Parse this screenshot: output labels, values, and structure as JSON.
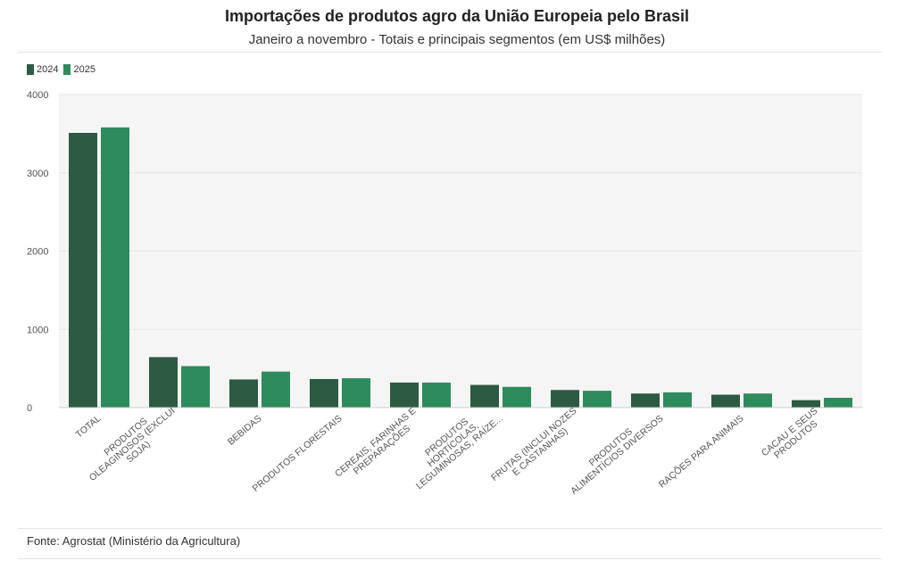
{
  "header": {
    "title": "Importações de produtos agro da União Europeia pelo Brasil",
    "subtitle": "Janeiro a novembro - Totais e principais segmentos (em US$ milhões)"
  },
  "legend": [
    {
      "label": "2024",
      "color": "#2d5a43"
    },
    {
      "label": "2025",
      "color": "#2e8b5e"
    }
  ],
  "footer": {
    "source": "Fonte: Agrostat (Ministério da Agricultura)"
  },
  "colors": {
    "plot_background": "#f5f5f5",
    "gridline": "#e6e6e6",
    "series_2024": "#2d5a43",
    "series_2025": "#2e8b5e"
  },
  "chart_data": {
    "type": "bar",
    "categories": [
      [
        "TOTAL"
      ],
      [
        "PRODUTOS",
        "OLEAGINOSOS (EXCLUI",
        "SOJA)"
      ],
      [
        "BEBIDAS"
      ],
      [
        "PRODUTOS FLORESTAIS"
      ],
      [
        "CEREAIS, FARINHAS E",
        "PREPARAÇÕES"
      ],
      [
        "PRODUTOS",
        "HORTÍCOLAS,",
        "LEGUMINOSAS, RAÍZE..."
      ],
      [
        "FRUTAS (INCLUI NOZES",
        "E CASTANHAS)"
      ],
      [
        "PRODUTOS",
        "ALIMENTÍCIOS DIVERSOS"
      ],
      [
        "RAÇÕES PARA ANIMAIS"
      ],
      [
        "CACAU E SEUS",
        "PRODUTOS"
      ]
    ],
    "series": [
      {
        "name": "2024",
        "values": [
          3510,
          645,
          360,
          365,
          320,
          290,
          225,
          180,
          165,
          95
        ]
      },
      {
        "name": "2025",
        "values": [
          3580,
          530,
          460,
          375,
          320,
          265,
          215,
          195,
          180,
          125
        ]
      }
    ],
    "yticks": [
      0,
      1000,
      2000,
      3000,
      4000
    ],
    "ylim": [
      0,
      4000
    ],
    "grid": true,
    "legend_position": "top-left"
  }
}
